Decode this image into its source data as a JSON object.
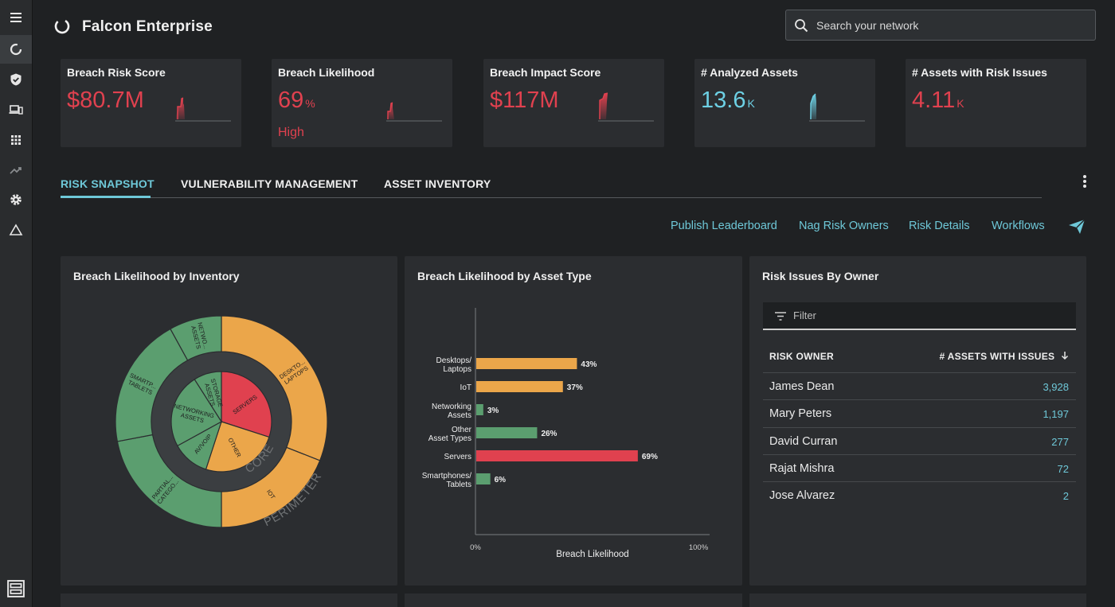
{
  "app": {
    "title": "Falcon Enterprise"
  },
  "search": {
    "placeholder": "Search your network"
  },
  "colors": {
    "accent": "#6ec8d8",
    "danger": "#e0414f",
    "warning": "#eba64a",
    "ok": "#5b9e6f"
  },
  "sidebar": {
    "items": [
      {
        "icon": "menu-icon"
      },
      {
        "icon": "falcon-logo-icon"
      },
      {
        "icon": "shield-check-icon"
      },
      {
        "icon": "devices-icon"
      },
      {
        "icon": "apps-grid-icon"
      },
      {
        "icon": "trending-icon"
      },
      {
        "icon": "gear-icon"
      },
      {
        "icon": "warning-triangle-icon"
      },
      {
        "icon": "layout-toggle-icon"
      }
    ]
  },
  "kpis": [
    {
      "title": "Breach Risk Score",
      "value": "$80.7M",
      "unit": "",
      "sub": ""
    },
    {
      "title": "Breach Likelihood",
      "value": "69",
      "unit": "%",
      "sub": "High"
    },
    {
      "title": "Breach Impact Score",
      "value": "$117M",
      "unit": "",
      "sub": ""
    },
    {
      "title": "# Analyzed Assets",
      "value": "13.6",
      "unit": "K",
      "sub": ""
    },
    {
      "title": "# Assets with Risk Issues",
      "value": "4.11",
      "unit": "K",
      "sub": ""
    }
  ],
  "tabs": [
    {
      "label": "RISK SNAPSHOT",
      "active": true
    },
    {
      "label": "VULNERABILITY MANAGEMENT",
      "active": false
    },
    {
      "label": "ASSET INVENTORY",
      "active": false
    }
  ],
  "actions": [
    "Publish Leaderboard",
    "Nag Risk Owners",
    "Risk Details",
    "Workflows"
  ],
  "panels": {
    "inventory": {
      "title": "Breach Likelihood by Inventory"
    },
    "asset_type": {
      "title": "Breach Likelihood by Asset Type"
    },
    "owners": {
      "title": "Risk Issues By Owner",
      "filter_placeholder": "Filter",
      "columns": [
        "RISK OWNER",
        "# ASSETS WITH ISSUES"
      ],
      "rows": [
        {
          "owner": "James Dean",
          "count": "3,928"
        },
        {
          "owner": "Mary Peters",
          "count": "1,197"
        },
        {
          "owner": "David Curran",
          "count": "277"
        },
        {
          "owner": "Rajat Mishra",
          "count": "72"
        },
        {
          "owner": "Jose Alvarez",
          "count": "2"
        }
      ]
    }
  },
  "chart_data": [
    {
      "type": "pie",
      "title": "Breach Likelihood by Inventory",
      "rings": [
        {
          "name": "CORE",
          "slices": [
            {
              "label": "SERVERS",
              "value": 30,
              "color": "#e0414f"
            },
            {
              "label": "OTHER",
              "value": 25,
              "color": "#eba64a"
            },
            {
              "label": "AV/VOIP",
              "value": 12,
              "color": "#5b9e6f"
            },
            {
              "label": "NETWORKING ASSETS",
              "value": 24,
              "color": "#5b9e6f"
            },
            {
              "label": "STORAGE ASSETS",
              "value": 9,
              "color": "#5b9e6f"
            }
          ]
        },
        {
          "name": "PERIMETER",
          "slices": [
            {
              "label": "DESKTO... LAPTOPS",
              "value": 31,
              "color": "#eba64a"
            },
            {
              "label": "IOT",
              "value": 19,
              "color": "#eba64a"
            },
            {
              "label": "PARTIAL... CATEGO...",
              "value": 22,
              "color": "#5b9e6f"
            },
            {
              "label": "SMARTP... TABLETS",
              "value": 20,
              "color": "#5b9e6f"
            },
            {
              "label": "NETWO... ASSETS",
              "value": 8,
              "color": "#5b9e6f"
            }
          ]
        }
      ]
    },
    {
      "type": "bar",
      "title": "Breach Likelihood by Asset Type",
      "xlabel": "Breach Likelihood",
      "xlim": [
        0,
        100
      ],
      "xtick_labels": [
        "0%",
        "100%"
      ],
      "categories": [
        [
          "Desktops/",
          "Laptops"
        ],
        [
          "IoT"
        ],
        [
          "Networking",
          "Assets"
        ],
        [
          "Other",
          "Asset Types"
        ],
        [
          "Servers"
        ],
        [
          "Smartphones/",
          "Tablets"
        ]
      ],
      "values": [
        43,
        37,
        3,
        26,
        69,
        6
      ],
      "value_labels": [
        "43%",
        "37%",
        "3%",
        "26%",
        "69%",
        "6%"
      ],
      "colors": [
        "#eba64a",
        "#eba64a",
        "#5b9e6f",
        "#5b9e6f",
        "#e0414f",
        "#5b9e6f"
      ]
    }
  ]
}
